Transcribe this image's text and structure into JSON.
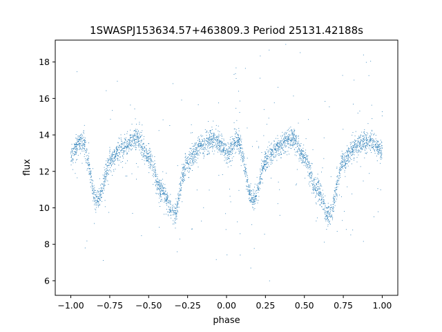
{
  "chart_data": {
    "type": "scatter",
    "title": "1SWASPJ153634.57+463809.3 Period 25131.42188s",
    "xlabel": "phase",
    "ylabel": "flux",
    "xlim": [
      -1.1,
      1.1
    ],
    "ylim": [
      5.2,
      19.2
    ],
    "x_ticks": [
      -1.0,
      -0.75,
      -0.5,
      -0.25,
      0.0,
      0.25,
      0.5,
      0.75,
      1.0
    ],
    "x_tick_labels": [
      "−1.00",
      "−0.75",
      "−0.50",
      "−0.25",
      "0.00",
      "0.25",
      "0.50",
      "0.75",
      "1.00"
    ],
    "y_ticks": [
      6,
      8,
      10,
      12,
      14,
      16,
      18
    ],
    "y_tick_labels": [
      "6",
      "8",
      "10",
      "12",
      "14",
      "16",
      "18"
    ],
    "grid": false,
    "point_color": "#1f77b4",
    "series": [
      {
        "x_range": [
          -1.0,
          1.0
        ],
        "light_curve_knots": {
          "phase": [
            0.0,
            0.07,
            0.17,
            0.26,
            0.33,
            0.42,
            0.5,
            0.58,
            0.66,
            0.75,
            0.83,
            0.92,
            1.0
          ],
          "flux": [
            12.9,
            13.7,
            10.4,
            12.6,
            13.3,
            13.8,
            12.8,
            11.0,
            9.6,
            12.5,
            13.4,
            13.7,
            13.1
          ]
        },
        "typical_scatter": 0.3,
        "outlier_range": [
          5.8,
          18.6
        ]
      }
    ]
  }
}
